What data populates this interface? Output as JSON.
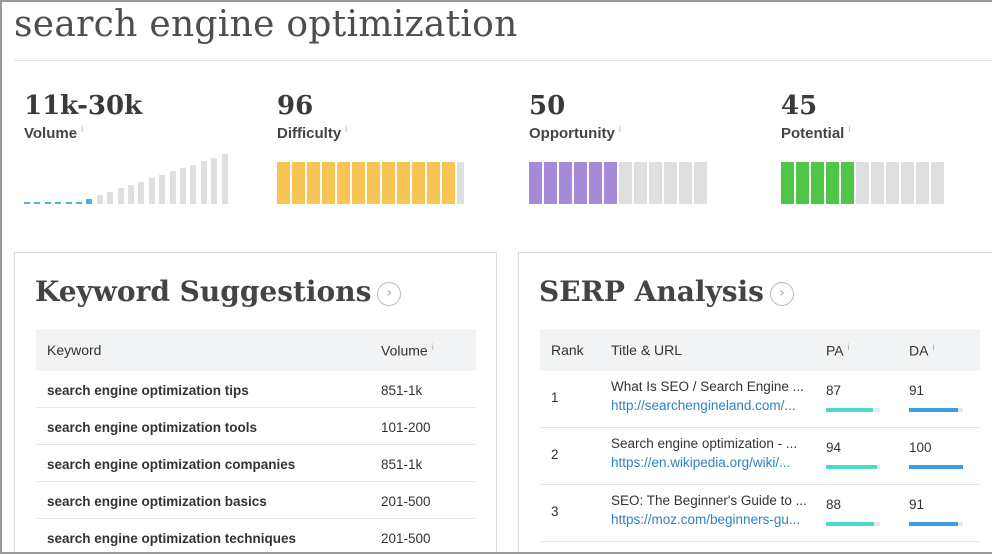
{
  "page": {
    "title": "search engine optimization"
  },
  "colors": {
    "volume_on": "#47b2e6",
    "inactive": "#dedfe0",
    "difficulty": "#f8c453",
    "opportunity": "#a58ad9",
    "potential": "#4fc648",
    "pa_bar": "#4dd9c5",
    "da_bar": "#3a9fdc"
  },
  "metrics": {
    "info_icon": "i",
    "volume": {
      "value": "11k-30k",
      "label": "Volume",
      "filled_of_total": [
        7,
        20
      ]
    },
    "difficulty": {
      "value": "96",
      "label": "Difficulty",
      "filled_of_total": [
        12,
        13
      ]
    },
    "opportunity": {
      "value": "50",
      "label": "Opportunity",
      "filled_of_total": [
        6,
        12
      ]
    },
    "potential": {
      "value": "45",
      "label": "Potential",
      "filled_of_total": [
        5,
        11
      ]
    }
  },
  "keyword_suggestions": {
    "title": "Keyword Suggestions",
    "more_icon": "chevron-right-circle-icon",
    "more_glyph": "›",
    "columns": {
      "keyword": "Keyword",
      "volume": "Volume"
    },
    "rows": [
      {
        "keyword": "search engine optimization tips",
        "volume": "851-1k"
      },
      {
        "keyword": "search engine optimization tools",
        "volume": "101-200"
      },
      {
        "keyword": "search engine optimization companies",
        "volume": "851-1k"
      },
      {
        "keyword": "search engine optimization basics",
        "volume": "201-500"
      },
      {
        "keyword": "search engine optimization techniques",
        "volume": "201-500"
      }
    ]
  },
  "serp_analysis": {
    "title": "SERP Analysis",
    "more_glyph": "›",
    "columns": {
      "rank": "Rank",
      "title_url": "Title & URL",
      "pa": "PA",
      "da": "DA"
    },
    "rows": [
      {
        "rank": "1",
        "title": "What Is SEO / Search Engine ...",
        "url": "http://searchengineland.com/...",
        "pa": 87,
        "da": 91
      },
      {
        "rank": "2",
        "title": "Search engine optimization - ...",
        "url": "https://en.wikipedia.org/wiki/...",
        "pa": 94,
        "da": 100
      },
      {
        "rank": "3",
        "title": "SEO: The Beginner's Guide to ...",
        "url": "https://moz.com/beginners-gu...",
        "pa": 88,
        "da": 91
      }
    ]
  }
}
